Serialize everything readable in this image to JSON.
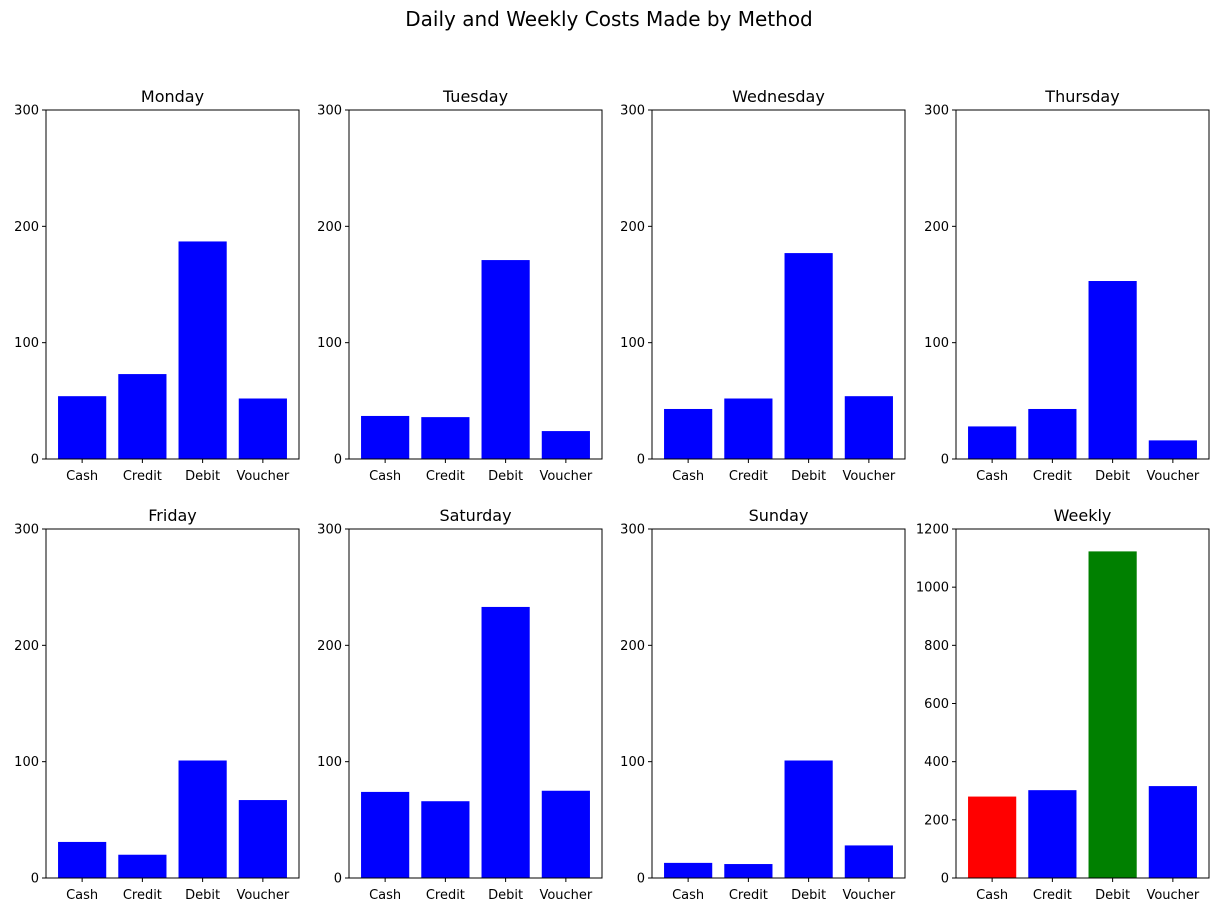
{
  "figure": {
    "suptitle": "Daily and Weekly Costs Made by Method"
  },
  "colors": {
    "default_bar": "#0000ff",
    "min_bar": "#ff0000",
    "max_bar": "#008000",
    "axis": "#000000"
  },
  "chart_data": [
    {
      "type": "bar",
      "title": "Monday",
      "categories": [
        "Cash",
        "Credit",
        "Debit",
        "Voucher"
      ],
      "values": [
        54,
        73,
        187,
        52
      ],
      "ylim": [
        0,
        300
      ],
      "yticks": [
        0,
        100,
        200,
        300
      ],
      "bar_colors": [
        "#0000ff",
        "#0000ff",
        "#0000ff",
        "#0000ff"
      ]
    },
    {
      "type": "bar",
      "title": "Tuesday",
      "categories": [
        "Cash",
        "Credit",
        "Debit",
        "Voucher"
      ],
      "values": [
        37,
        36,
        171,
        24
      ],
      "ylim": [
        0,
        300
      ],
      "yticks": [
        0,
        100,
        200,
        300
      ],
      "bar_colors": [
        "#0000ff",
        "#0000ff",
        "#0000ff",
        "#0000ff"
      ]
    },
    {
      "type": "bar",
      "title": "Wednesday",
      "categories": [
        "Cash",
        "Credit",
        "Debit",
        "Voucher"
      ],
      "values": [
        43,
        52,
        177,
        54
      ],
      "ylim": [
        0,
        300
      ],
      "yticks": [
        0,
        100,
        200,
        300
      ],
      "bar_colors": [
        "#0000ff",
        "#0000ff",
        "#0000ff",
        "#0000ff"
      ]
    },
    {
      "type": "bar",
      "title": "Thursday",
      "categories": [
        "Cash",
        "Credit",
        "Debit",
        "Voucher"
      ],
      "values": [
        28,
        43,
        153,
        16
      ],
      "ylim": [
        0,
        300
      ],
      "yticks": [
        0,
        100,
        200,
        300
      ],
      "bar_colors": [
        "#0000ff",
        "#0000ff",
        "#0000ff",
        "#0000ff"
      ]
    },
    {
      "type": "bar",
      "title": "Friday",
      "categories": [
        "Cash",
        "Credit",
        "Debit",
        "Voucher"
      ],
      "values": [
        31,
        20,
        101,
        67
      ],
      "ylim": [
        0,
        300
      ],
      "yticks": [
        0,
        100,
        200,
        300
      ],
      "bar_colors": [
        "#0000ff",
        "#0000ff",
        "#0000ff",
        "#0000ff"
      ]
    },
    {
      "type": "bar",
      "title": "Saturday",
      "categories": [
        "Cash",
        "Credit",
        "Debit",
        "Voucher"
      ],
      "values": [
        74,
        66,
        233,
        75
      ],
      "ylim": [
        0,
        300
      ],
      "yticks": [
        0,
        100,
        200,
        300
      ],
      "bar_colors": [
        "#0000ff",
        "#0000ff",
        "#0000ff",
        "#0000ff"
      ]
    },
    {
      "type": "bar",
      "title": "Sunday",
      "categories": [
        "Cash",
        "Credit",
        "Debit",
        "Voucher"
      ],
      "values": [
        13,
        12,
        101,
        28
      ],
      "ylim": [
        0,
        300
      ],
      "yticks": [
        0,
        100,
        200,
        300
      ],
      "bar_colors": [
        "#0000ff",
        "#0000ff",
        "#0000ff",
        "#0000ff"
      ]
    },
    {
      "type": "bar",
      "title": "Weekly",
      "categories": [
        "Cash",
        "Credit",
        "Debit",
        "Voucher"
      ],
      "values": [
        280,
        302,
        1123,
        316
      ],
      "ylim": [
        0,
        1200
      ],
      "yticks": [
        0,
        200,
        400,
        600,
        800,
        1000,
        1200
      ],
      "bar_colors": [
        "#ff0000",
        "#0000ff",
        "#008000",
        "#0000ff"
      ]
    }
  ]
}
